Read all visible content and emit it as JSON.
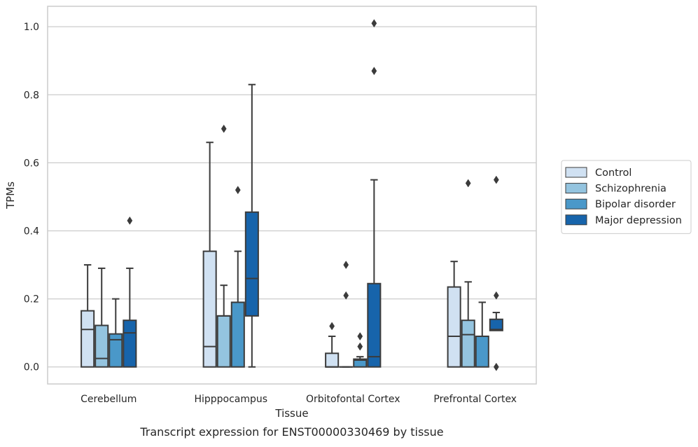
{
  "chart_data": {
    "type": "boxplot",
    "title": "",
    "xlabel": "Tissue",
    "ylabel": "TPMs",
    "caption": "Transcript expression for ENST00000330469 by tissue",
    "ylim": [
      -0.05,
      1.06
    ],
    "yticks": [
      0.0,
      0.2,
      0.4,
      0.6,
      0.8,
      1.0
    ],
    "ytick_labels": [
      "0.0",
      "0.2",
      "0.4",
      "0.6",
      "0.8",
      "1.0"
    ],
    "grid": "horizontal",
    "legend_position": "right",
    "categories": [
      "Cerebellum",
      "Hipppocampus",
      "Orbitofontal Cortex",
      "Prefrontal Cortex"
    ],
    "series": [
      {
        "name": "Control",
        "color": "#d0e1f2",
        "boxes": [
          {
            "q1": 0.0,
            "median": 0.11,
            "q3": 0.165,
            "whisker_low": 0.0,
            "whisker_high": 0.3,
            "outliers": []
          },
          {
            "q1": 0.0,
            "median": 0.06,
            "q3": 0.34,
            "whisker_low": 0.0,
            "whisker_high": 0.66,
            "outliers": []
          },
          {
            "q1": 0.0,
            "median": 0.0,
            "q3": 0.04,
            "whisker_low": 0.0,
            "whisker_high": 0.09,
            "outliers": [
              0.12
            ]
          },
          {
            "q1": 0.0,
            "median": 0.09,
            "q3": 0.235,
            "whisker_low": 0.0,
            "whisker_high": 0.31,
            "outliers": []
          }
        ]
      },
      {
        "name": "Schizophrenia",
        "color": "#94c4df",
        "boxes": [
          {
            "q1": 0.0,
            "median": 0.025,
            "q3": 0.122,
            "whisker_low": 0.0,
            "whisker_high": 0.29,
            "outliers": []
          },
          {
            "q1": 0.0,
            "median": 0.15,
            "q3": 0.15,
            "whisker_low": 0.0,
            "whisker_high": 0.24,
            "outliers": [
              0.7
            ]
          },
          {
            "q1": 0.0,
            "median": 0.0,
            "q3": 0.0,
            "whisker_low": 0.0,
            "whisker_high": 0.0,
            "outliers": [
              0.21,
              0.3
            ]
          },
          {
            "q1": 0.0,
            "median": 0.095,
            "q3": 0.137,
            "whisker_low": 0.0,
            "whisker_high": 0.25,
            "outliers": [
              0.54
            ]
          }
        ]
      },
      {
        "name": "Bipolar disorder",
        "color": "#4a98c9",
        "boxes": [
          {
            "q1": 0.0,
            "median": 0.08,
            "q3": 0.097,
            "whisker_low": 0.0,
            "whisker_high": 0.2,
            "outliers": []
          },
          {
            "q1": 0.0,
            "median": 0.19,
            "q3": 0.19,
            "whisker_low": 0.0,
            "whisker_high": 0.34,
            "outliers": [
              0.52
            ]
          },
          {
            "q1": 0.0,
            "median": 0.02,
            "q3": 0.023,
            "whisker_low": 0.0,
            "whisker_high": 0.03,
            "outliers": [
              0.06,
              0.09
            ]
          },
          {
            "q1": 0.0,
            "median": 0.09,
            "q3": 0.09,
            "whisker_low": 0.0,
            "whisker_high": 0.19,
            "outliers": []
          }
        ]
      },
      {
        "name": "Major depression",
        "color": "#1764ab",
        "boxes": [
          {
            "q1": 0.0,
            "median": 0.1,
            "q3": 0.137,
            "whisker_low": 0.0,
            "whisker_high": 0.29,
            "outliers": [
              0.43
            ]
          },
          {
            "q1": 0.15,
            "median": 0.26,
            "q3": 0.455,
            "whisker_low": 0.0,
            "whisker_high": 0.83,
            "outliers": []
          },
          {
            "q1": 0.0,
            "median": 0.03,
            "q3": 0.245,
            "whisker_low": 0.0,
            "whisker_high": 0.55,
            "outliers": [
              0.87,
              1.01
            ]
          },
          {
            "q1": 0.107,
            "median": 0.11,
            "q3": 0.14,
            "whisker_low": 0.107,
            "whisker_high": 0.16,
            "outliers": [
              0.0,
              0.21,
              0.55
            ]
          }
        ]
      }
    ]
  }
}
